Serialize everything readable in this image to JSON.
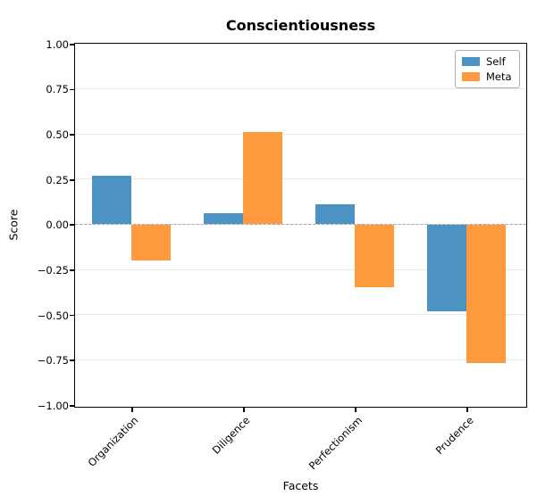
{
  "chart_data": {
    "type": "bar",
    "title": "Conscientiousness",
    "xlabel": "Facets",
    "ylabel": "Score",
    "categories": [
      "Organization",
      "Diligence",
      "Perfectionism",
      "Prudence"
    ],
    "series": [
      {
        "name": "Self",
        "color": "#4c92c3",
        "values": [
          0.27,
          0.06,
          0.11,
          -0.48
        ]
      },
      {
        "name": "Meta",
        "color": "#ff993e",
        "values": [
          -0.2,
          0.51,
          -0.35,
          -0.77
        ]
      }
    ],
    "ylim": [
      -1.0,
      1.0
    ],
    "yticks": [
      {
        "value": 1.0,
        "label": "1.00"
      },
      {
        "value": 0.75,
        "label": "0.75"
      },
      {
        "value": 0.5,
        "label": "0.50"
      },
      {
        "value": 0.25,
        "label": "0.25"
      },
      {
        "value": 0.0,
        "label": "0.00"
      },
      {
        "value": -0.25,
        "label": "−0.25"
      },
      {
        "value": -0.5,
        "label": "−0.50"
      },
      {
        "value": -0.75,
        "label": "−0.75"
      },
      {
        "value": -1.0,
        "label": "−1.00"
      }
    ],
    "grid": "horizontal",
    "zero_line": "dashed",
    "legend": {
      "position": "top-right",
      "entries": [
        "Self",
        "Meta"
      ]
    },
    "colors": {
      "self": "#4c92c3",
      "meta": "#ff993e",
      "grid": "#e9e9e9",
      "zero_line": "#a6a6a6",
      "spine": "#000000"
    }
  }
}
